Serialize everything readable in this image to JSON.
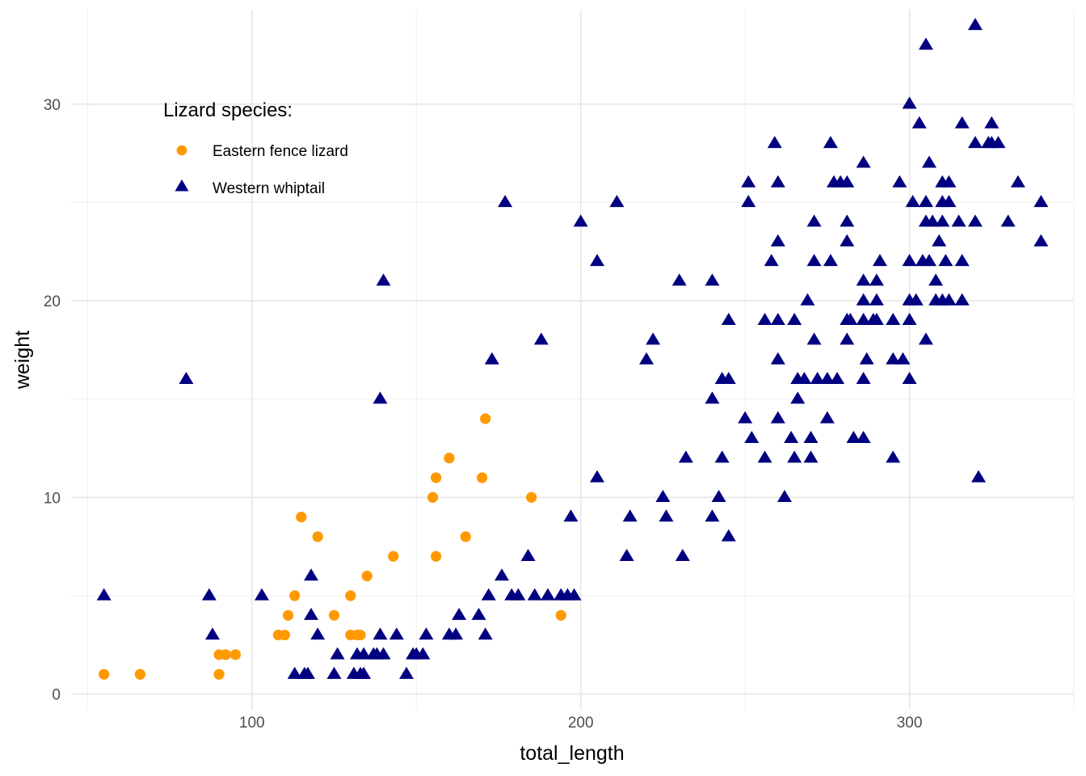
{
  "chart_data": {
    "type": "scatter",
    "xlabel": "total_length",
    "ylabel": "weight",
    "xlim": [
      45,
      350
    ],
    "ylim": [
      -0.8,
      34.8
    ],
    "x_ticks": [
      100,
      200,
      300
    ],
    "y_ticks": [
      0,
      10,
      20,
      30
    ],
    "x_minor_ticks": [
      50,
      150,
      250,
      350
    ],
    "y_minor_ticks": [
      5,
      15,
      25
    ],
    "grid": true,
    "legend": {
      "title": "Lizard species:",
      "placement": "top-left",
      "entries": [
        "Eastern fence lizard",
        "Western whiptail"
      ]
    },
    "colors": {
      "eastern": "#FF9900",
      "western": "#000080"
    },
    "series": [
      {
        "name": "Eastern fence lizard",
        "marker": "circle",
        "points": [
          [
            55,
            1
          ],
          [
            66,
            1
          ],
          [
            90,
            1
          ],
          [
            90,
            2
          ],
          [
            92,
            2
          ],
          [
            95,
            2
          ],
          [
            108,
            3
          ],
          [
            110,
            3
          ],
          [
            111,
            4
          ],
          [
            113,
            5
          ],
          [
            115,
            9
          ],
          [
            120,
            8
          ],
          [
            125,
            4
          ],
          [
            130,
            5
          ],
          [
            130,
            3
          ],
          [
            132,
            3
          ],
          [
            133,
            3
          ],
          [
            135,
            6
          ],
          [
            143,
            7
          ],
          [
            155,
            10
          ],
          [
            156,
            7
          ],
          [
            156,
            11
          ],
          [
            160,
            12
          ],
          [
            165,
            8
          ],
          [
            170,
            11
          ],
          [
            171,
            14
          ],
          [
            185,
            10
          ],
          [
            194,
            4
          ]
        ]
      },
      {
        "name": "Western whiptail",
        "marker": "triangle",
        "points": [
          [
            55,
            5
          ],
          [
            80,
            16
          ],
          [
            87,
            5
          ],
          [
            88,
            3
          ],
          [
            103,
            5
          ],
          [
            113,
            1
          ],
          [
            116,
            1
          ],
          [
            117,
            1
          ],
          [
            118,
            6
          ],
          [
            118,
            4
          ],
          [
            120,
            3
          ],
          [
            125,
            1
          ],
          [
            126,
            2
          ],
          [
            131,
            1
          ],
          [
            132,
            2
          ],
          [
            133,
            1
          ],
          [
            134,
            1
          ],
          [
            134,
            2
          ],
          [
            137,
            2
          ],
          [
            138,
            2
          ],
          [
            139,
            3
          ],
          [
            139,
            15
          ],
          [
            140,
            21
          ],
          [
            140,
            2
          ],
          [
            144,
            3
          ],
          [
            147,
            1
          ],
          [
            149,
            2
          ],
          [
            150,
            2
          ],
          [
            152,
            2
          ],
          [
            153,
            3
          ],
          [
            160,
            3
          ],
          [
            162,
            3
          ],
          [
            163,
            4
          ],
          [
            169,
            4
          ],
          [
            171,
            3
          ],
          [
            172,
            5
          ],
          [
            173,
            17
          ],
          [
            176,
            6
          ],
          [
            177,
            25
          ],
          [
            179,
            5
          ],
          [
            181,
            5
          ],
          [
            184,
            7
          ],
          [
            186,
            5
          ],
          [
            188,
            18
          ],
          [
            190,
            5
          ],
          [
            194,
            5
          ],
          [
            196,
            5
          ],
          [
            197,
            9
          ],
          [
            198,
            5
          ],
          [
            200,
            24
          ],
          [
            205,
            11
          ],
          [
            205,
            22
          ],
          [
            211,
            25
          ],
          [
            214,
            7
          ],
          [
            215,
            9
          ],
          [
            220,
            17
          ],
          [
            222,
            18
          ],
          [
            225,
            10
          ],
          [
            226,
            9
          ],
          [
            230,
            21
          ],
          [
            231,
            7
          ],
          [
            232,
            12
          ],
          [
            240,
            15
          ],
          [
            240,
            9
          ],
          [
            240,
            21
          ],
          [
            242,
            10
          ],
          [
            243,
            16
          ],
          [
            243,
            12
          ],
          [
            245,
            16
          ],
          [
            245,
            19
          ],
          [
            245,
            8
          ],
          [
            250,
            14
          ],
          [
            251,
            26
          ],
          [
            251,
            25
          ],
          [
            252,
            13
          ],
          [
            256,
            19
          ],
          [
            256,
            12
          ],
          [
            258,
            22
          ],
          [
            259,
            28
          ],
          [
            260,
            17
          ],
          [
            260,
            19
          ],
          [
            260,
            14
          ],
          [
            260,
            26
          ],
          [
            260,
            23
          ],
          [
            262,
            10
          ],
          [
            264,
            13
          ],
          [
            265,
            12
          ],
          [
            265,
            19
          ],
          [
            266,
            16
          ],
          [
            266,
            15
          ],
          [
            268,
            16
          ],
          [
            269,
            20
          ],
          [
            270,
            12
          ],
          [
            270,
            13
          ],
          [
            271,
            24
          ],
          [
            271,
            18
          ],
          [
            271,
            22
          ],
          [
            272,
            16
          ],
          [
            275,
            14
          ],
          [
            275,
            16
          ],
          [
            276,
            28
          ],
          [
            276,
            22
          ],
          [
            277,
            26
          ],
          [
            278,
            16
          ],
          [
            279,
            26
          ],
          [
            281,
            26
          ],
          [
            281,
            19
          ],
          [
            281,
            24
          ],
          [
            281,
            18
          ],
          [
            281,
            23
          ],
          [
            282,
            19
          ],
          [
            283,
            13
          ],
          [
            286,
            13
          ],
          [
            286,
            27
          ],
          [
            286,
            21
          ],
          [
            286,
            20
          ],
          [
            286,
            19
          ],
          [
            286,
            16
          ],
          [
            287,
            17
          ],
          [
            289,
            19
          ],
          [
            290,
            21
          ],
          [
            291,
            22
          ],
          [
            290,
            19
          ],
          [
            290,
            20
          ],
          [
            295,
            12
          ],
          [
            295,
            19
          ],
          [
            295,
            17
          ],
          [
            297,
            26
          ],
          [
            298,
            17
          ],
          [
            300,
            30
          ],
          [
            300,
            16
          ],
          [
            300,
            20
          ],
          [
            300,
            22
          ],
          [
            300,
            19
          ],
          [
            301,
            25
          ],
          [
            302,
            20
          ],
          [
            303,
            29
          ],
          [
            304,
            22
          ],
          [
            305,
            33
          ],
          [
            305,
            24
          ],
          [
            305,
            25
          ],
          [
            305,
            18
          ],
          [
            306,
            27
          ],
          [
            306,
            22
          ],
          [
            307,
            24
          ],
          [
            308,
            21
          ],
          [
            308,
            20
          ],
          [
            309,
            23
          ],
          [
            310,
            25
          ],
          [
            310,
            20
          ],
          [
            310,
            26
          ],
          [
            310,
            24
          ],
          [
            311,
            22
          ],
          [
            312,
            20
          ],
          [
            312,
            26
          ],
          [
            312,
            25
          ],
          [
            315,
            24
          ],
          [
            316,
            22
          ],
          [
            316,
            29
          ],
          [
            316,
            20
          ],
          [
            320,
            24
          ],
          [
            320,
            28
          ],
          [
            320,
            34
          ],
          [
            321,
            11
          ],
          [
            324,
            28
          ],
          [
            325,
            29
          ],
          [
            325,
            28
          ],
          [
            327,
            28
          ],
          [
            330,
            24
          ],
          [
            333,
            26
          ],
          [
            340,
            25
          ],
          [
            340,
            23
          ]
        ]
      }
    ]
  }
}
